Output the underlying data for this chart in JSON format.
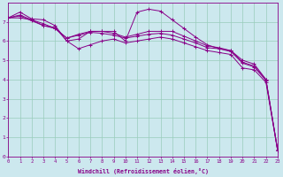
{
  "xlabel": "Windchill (Refroidissement éolien,°C)",
  "bg_color": "#cce8ee",
  "line_color": "#880088",
  "grid_color": "#99ccbb",
  "xlim": [
    0,
    23
  ],
  "ylim": [
    0,
    8
  ],
  "xticks": [
    0,
    1,
    2,
    3,
    4,
    5,
    6,
    7,
    8,
    9,
    10,
    11,
    12,
    13,
    14,
    15,
    16,
    17,
    18,
    19,
    20,
    21,
    22,
    23
  ],
  "yticks": [
    0,
    1,
    2,
    3,
    4,
    5,
    6,
    7
  ],
  "curves": [
    [
      7.2,
      7.5,
      7.15,
      7.1,
      6.8,
      6.0,
      6.1,
      6.5,
      6.5,
      6.5,
      6.0,
      7.5,
      7.65,
      7.55,
      7.1,
      6.65,
      6.2,
      5.8,
      5.6,
      5.5,
      4.9,
      4.7,
      4.0,
      0.3
    ],
    [
      7.2,
      7.35,
      7.1,
      6.9,
      6.65,
      6.15,
      6.35,
      6.5,
      6.5,
      6.4,
      6.2,
      6.35,
      6.5,
      6.5,
      6.5,
      6.25,
      6.0,
      5.75,
      5.65,
      5.5,
      5.0,
      4.8,
      4.0,
      0.3
    ],
    [
      7.2,
      7.3,
      7.05,
      6.8,
      6.65,
      6.15,
      6.3,
      6.45,
      6.4,
      6.3,
      6.15,
      6.25,
      6.35,
      6.4,
      6.3,
      6.1,
      5.9,
      5.65,
      5.6,
      5.45,
      4.85,
      4.65,
      3.95,
      0.35
    ],
    [
      7.2,
      7.2,
      7.1,
      6.8,
      6.7,
      6.0,
      5.6,
      5.8,
      6.0,
      6.1,
      5.9,
      6.0,
      6.1,
      6.2,
      6.1,
      5.9,
      5.7,
      5.5,
      5.4,
      5.3,
      4.6,
      4.5,
      3.85,
      0.3
    ]
  ]
}
